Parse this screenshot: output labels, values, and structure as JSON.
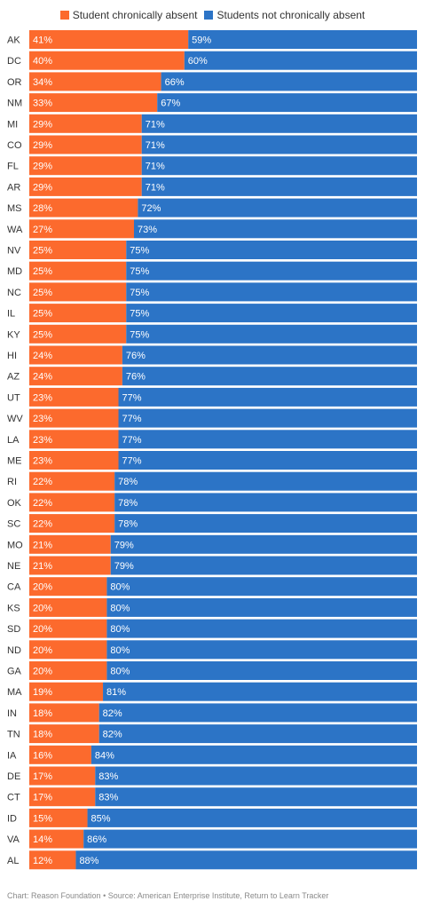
{
  "legend": {
    "absent_label": "Student chronically absent",
    "not_absent_label": "Students not chronically absent"
  },
  "colors": {
    "absent": "#fc6a2d",
    "not_absent": "#2c74c6",
    "label_text": "#333333",
    "bar_text": "#ffffff"
  },
  "footer": {
    "chart_credit": "Chart: Reason Foundation",
    "separator": "•",
    "source": "Source: American Enterprise Institute, Return to Learn Tracker"
  },
  "chart_data": {
    "type": "bar",
    "orientation": "horizontal",
    "stacked": true,
    "percent_suffix": "%",
    "categories": [
      "AK",
      "DC",
      "OR",
      "NM",
      "MI",
      "CO",
      "FL",
      "AR",
      "MS",
      "WA",
      "NV",
      "MD",
      "NC",
      "IL",
      "KY",
      "HI",
      "AZ",
      "UT",
      "WV",
      "LA",
      "ME",
      "RI",
      "OK",
      "SC",
      "MO",
      "NE",
      "CA",
      "KS",
      "SD",
      "ND",
      "GA",
      "MA",
      "IN",
      "TN",
      "IA",
      "DE",
      "CT",
      "ID",
      "VA",
      "AL"
    ],
    "series": [
      {
        "name": "Student chronically absent",
        "values": [
          41,
          40,
          34,
          33,
          29,
          29,
          29,
          29,
          28,
          27,
          25,
          25,
          25,
          25,
          25,
          24,
          24,
          23,
          23,
          23,
          23,
          22,
          22,
          22,
          21,
          21,
          20,
          20,
          20,
          20,
          20,
          19,
          18,
          18,
          16,
          17,
          17,
          15,
          14,
          12
        ]
      },
      {
        "name": "Students not chronically absent",
        "values": [
          59,
          60,
          66,
          67,
          71,
          71,
          71,
          71,
          72,
          73,
          75,
          75,
          75,
          75,
          75,
          76,
          76,
          77,
          77,
          77,
          77,
          78,
          78,
          78,
          79,
          79,
          80,
          80,
          80,
          80,
          80,
          81,
          82,
          82,
          84,
          83,
          83,
          85,
          86,
          88
        ]
      }
    ],
    "xlim": [
      0,
      100
    ],
    "legend_position": "top-center",
    "grid": false
  }
}
